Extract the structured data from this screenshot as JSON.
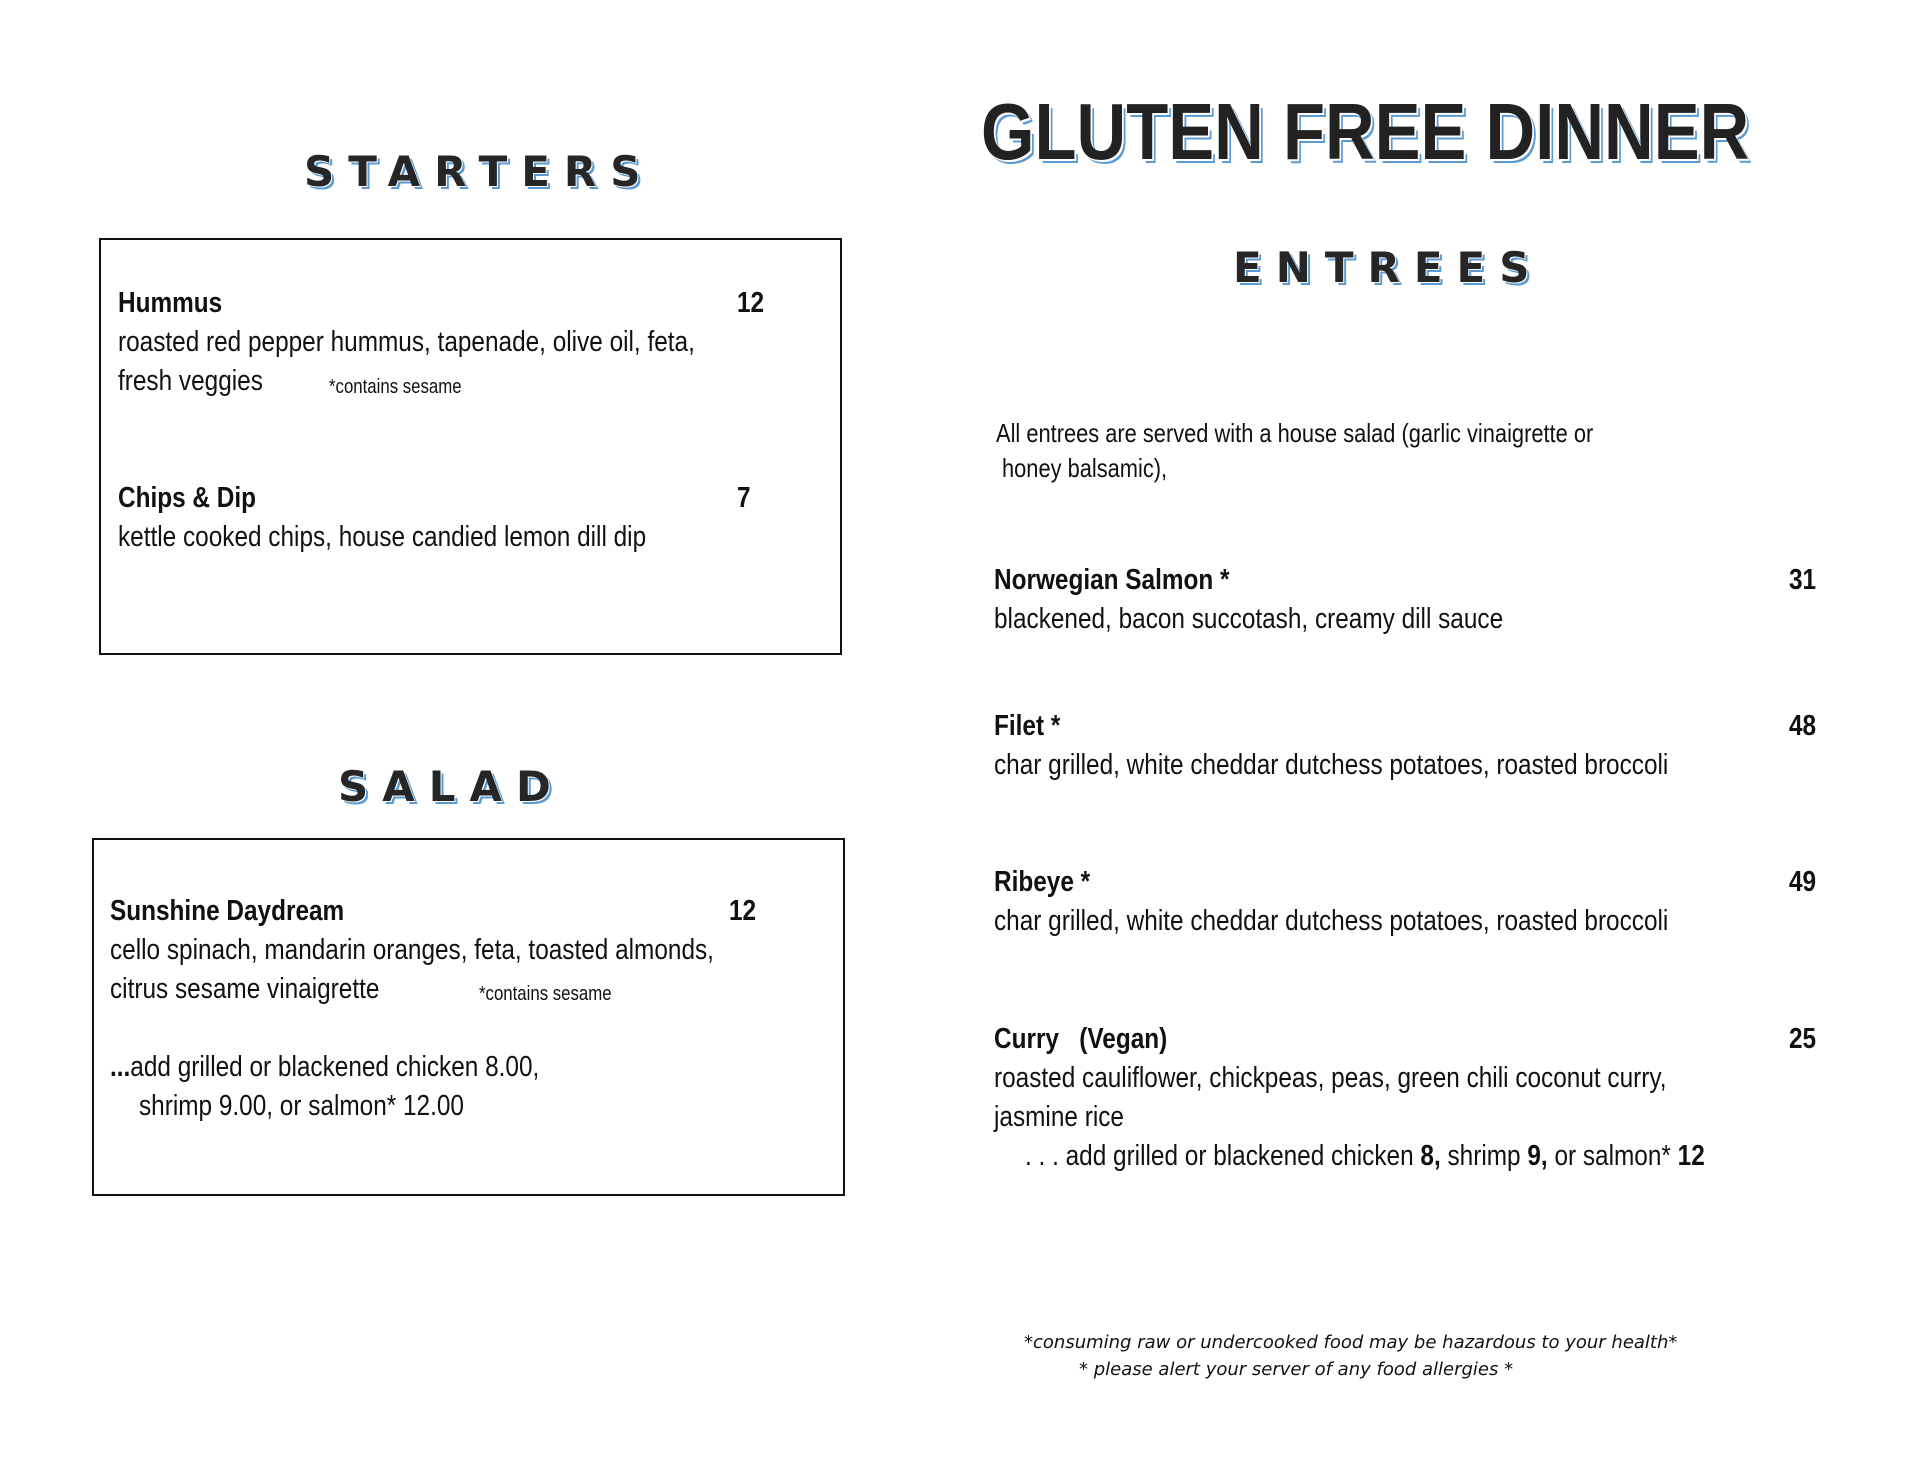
{
  "title": "GLUTEN FREE DINNER",
  "accent_color": "#5b9bd5",
  "starters": {
    "heading": "STARTERS",
    "items": [
      {
        "name": "Hummus",
        "price": "12",
        "desc": [
          "roasted red pepper hummus, tapenade, olive oil, feta,",
          "fresh veggies"
        ],
        "note": "*contains sesame"
      },
      {
        "name": "Chips & Dip",
        "price": "7",
        "desc": [
          "kettle cooked chips, house candied lemon dill dip"
        ]
      }
    ]
  },
  "salad": {
    "heading": "SALAD",
    "items": [
      {
        "name": "Sunshine Daydream",
        "price": "12",
        "desc": [
          "cello spinach, mandarin oranges, feta, toasted almonds,",
          "citrus sesame vinaigrette"
        ],
        "note": "*contains sesame"
      }
    ],
    "addon": {
      "prefix": "...",
      "line1": "add grilled or blackened chicken  8.00,",
      "line2": "shrimp  9.00, or  salmon*  12.00"
    }
  },
  "entrees": {
    "heading": "ENTREES",
    "intro": [
      "All entrees are served with a house salad (garlic vinaigrette or",
      "honey balsamic),"
    ],
    "items": [
      {
        "name": "Norwegian Salmon *",
        "price": "31",
        "desc": [
          "blackened, bacon succotash, creamy dill sauce"
        ]
      },
      {
        "name": "Filet *",
        "price": "48",
        "desc": [
          "char grilled, white cheddar dutchess potatoes, roasted broccoli"
        ]
      },
      {
        "name": "Ribeye *",
        "price": "49",
        "desc": [
          "char grilled, white cheddar dutchess potatoes, roasted broccoli"
        ]
      },
      {
        "name": "Curry   (Vegan)",
        "price": "25",
        "desc": [
          "roasted cauliflower, chickpeas, peas, green chili coconut curry,",
          "jasmine rice"
        ]
      }
    ],
    "addon": {
      "t1": ". . . add grilled or blackened chicken ",
      "p1": "8,",
      "t2": " shrimp ",
      "p2": "9,",
      "t3": " or salmon* ",
      "p3": "12"
    }
  },
  "footer": [
    "*consuming raw or undercooked food may be hazardous to your health*",
    "* please alert your server of any food allergies *"
  ]
}
